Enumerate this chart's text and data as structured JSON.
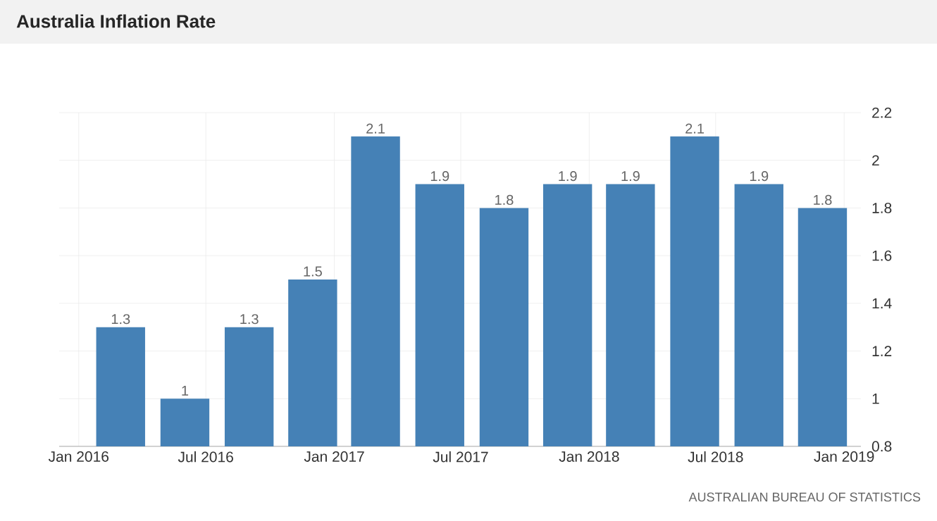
{
  "chart_data": {
    "type": "bar",
    "title": "Australia Inflation Rate",
    "annotations": [
      "AUSTRALIAN BUREAU OF STATISTICS"
    ],
    "x": [
      "2016-03",
      "2016-06",
      "2016-09",
      "2016-12",
      "2017-03",
      "2017-06",
      "2017-09",
      "2017-12",
      "2018-03",
      "2018-06",
      "2018-09",
      "2018-12"
    ],
    "values": [
      1.3,
      1,
      1.3,
      1.5,
      2.1,
      1.9,
      1.8,
      1.9,
      1.9,
      2.1,
      1.9,
      1.8
    ],
    "color": "#4581b6",
    "data_labels": true,
    "xlim": [
      "2015-12-04",
      "2019-01-25"
    ],
    "xticks": [
      {
        "value": "2016-01",
        "label": "Jan 2016"
      },
      {
        "value": "2016-07",
        "label": "Jul 2016"
      },
      {
        "value": "2017-01",
        "label": "Jan 2017"
      },
      {
        "value": "2017-07",
        "label": "Jul 2017"
      },
      {
        "value": "2018-01",
        "label": "Jan 2018"
      },
      {
        "value": "2018-07",
        "label": "Jul 2018"
      },
      {
        "value": "2019-01",
        "label": "Jan 2019"
      }
    ],
    "ylim": [
      0.8,
      2.2
    ],
    "yticks": [
      0.8,
      1,
      1.2,
      1.4,
      1.6,
      1.8,
      2,
      2.2
    ],
    "grid": true
  }
}
